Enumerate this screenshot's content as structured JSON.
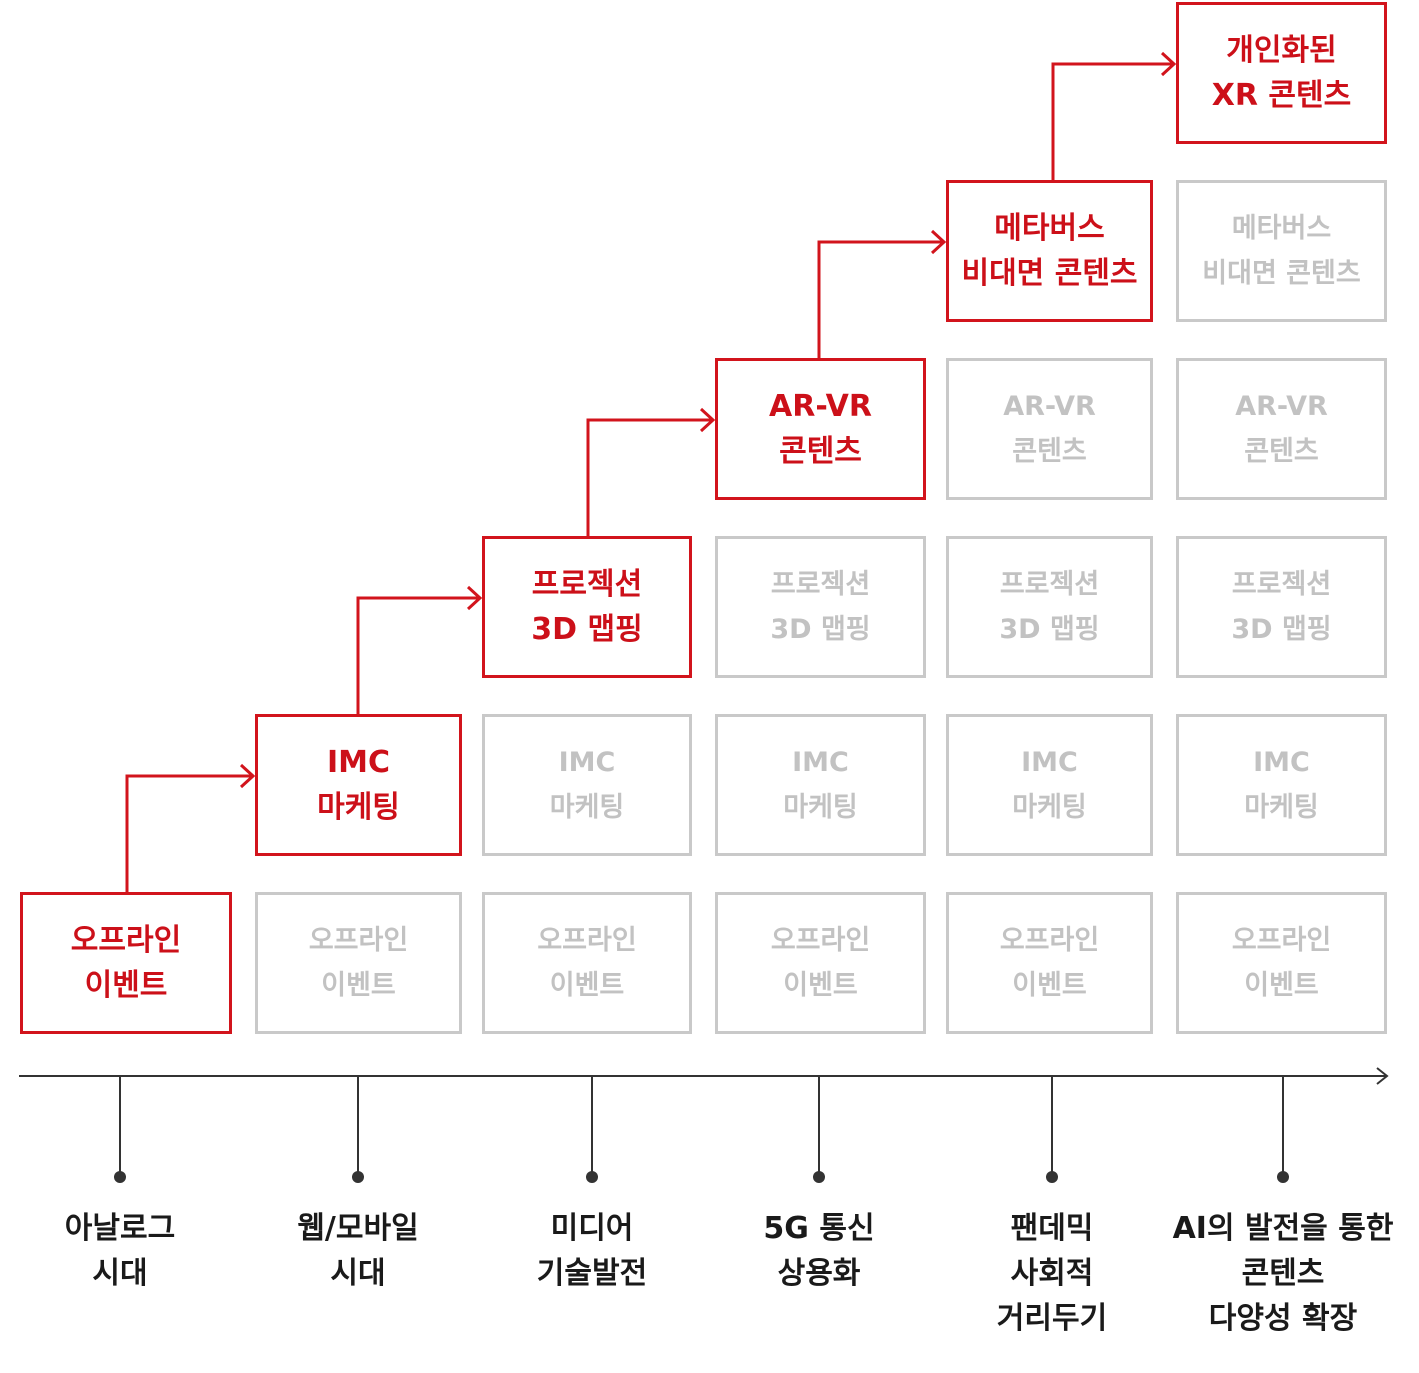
{
  "cells": {
    "offline": [
      "오프라인",
      "이벤트"
    ],
    "imc": [
      "IMC",
      "마케팅"
    ],
    "projection": [
      "프로젝션",
      "3D 맵핑"
    ],
    "arvr": [
      "AR-VR",
      "콘텐츠"
    ],
    "metaverse": [
      "메타버스",
      "비대면 콘텐츠"
    ],
    "xr": [
      "개인화된",
      "XR 콘텐츠"
    ]
  },
  "eras": [
    [
      "아날로그",
      "시대"
    ],
    [
      "웹/모바일",
      "시대"
    ],
    [
      "미디어",
      "기술발전"
    ],
    [
      "5G 통신",
      "상용화"
    ],
    [
      "팬데믹",
      "사회적",
      "거리두기"
    ],
    [
      "AI의 발전을 통한",
      "콘텐츠",
      "다양성 확장"
    ]
  ],
  "colors": {
    "accent": "#d2141c",
    "muted": "#c9c9c9",
    "axis": "#333333",
    "era_text": "#1a1a1a"
  }
}
